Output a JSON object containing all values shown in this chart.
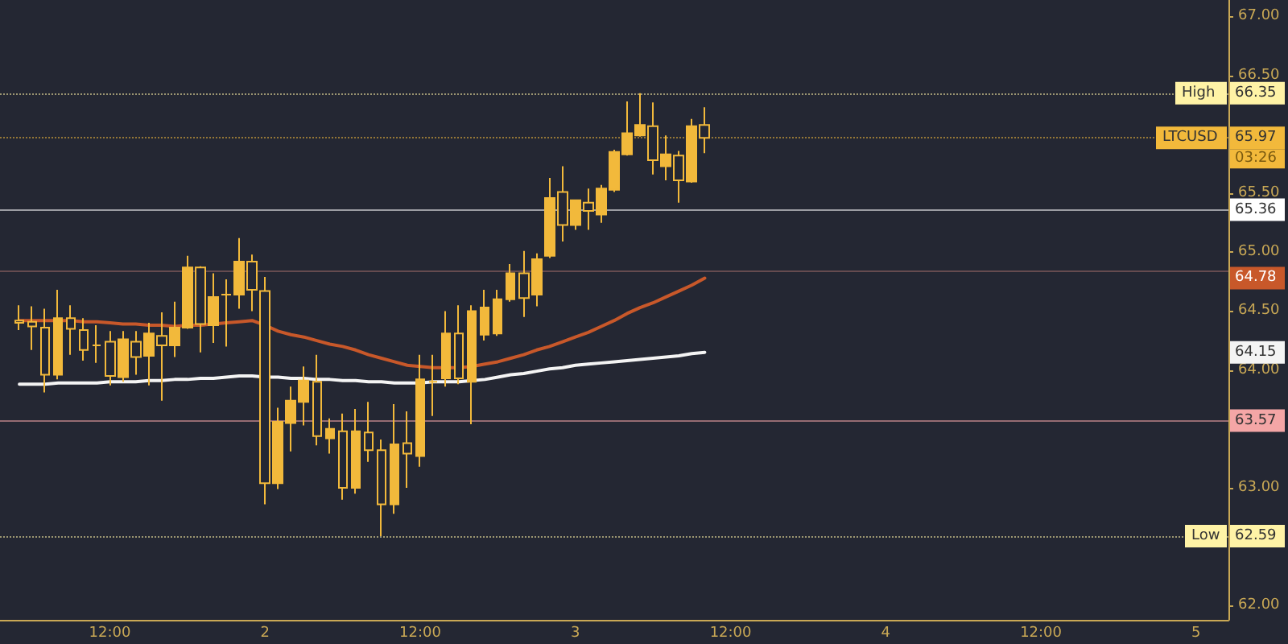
{
  "chart_data": {
    "type": "candlestick",
    "categories": [
      null,
      null,
      null,
      null,
      null,
      null,
      null,
      null,
      "12:00",
      null,
      null,
      null,
      null,
      null,
      null,
      null,
      null,
      null,
      null,
      null,
      "2",
      null,
      null,
      null,
      null,
      null,
      null,
      null,
      null,
      null,
      null,
      null,
      "12:00",
      null,
      null,
      null,
      null,
      null,
      null,
      null,
      null,
      null,
      null,
      null,
      "3",
      null,
      null,
      null,
      null,
      null,
      null,
      null,
      null,
      null,
      null,
      null,
      "12:00",
      null,
      null,
      null,
      null,
      null,
      null,
      null,
      null,
      null,
      null,
      null,
      "4",
      null,
      null,
      null,
      null,
      null,
      null,
      null,
      null,
      null,
      null,
      null,
      "12:00",
      null,
      null,
      null,
      null,
      null,
      null,
      null,
      null,
      null,
      null,
      null,
      "5",
      null,
      null
    ],
    "ohlc": [
      null,
      [
        64.42,
        64.55,
        64.34,
        64.4
      ],
      [
        64.41,
        64.54,
        64.17,
        64.37
      ],
      [
        64.36,
        64.52,
        63.81,
        63.96
      ],
      [
        63.96,
        64.68,
        63.92,
        64.44
      ],
      [
        64.44,
        64.55,
        64.13,
        64.35
      ],
      [
        64.34,
        64.44,
        64.08,
        64.17
      ],
      [
        64.21,
        64.38,
        64.06,
        64.21
      ],
      [
        64.24,
        64.33,
        63.87,
        63.95
      ],
      [
        63.94,
        64.33,
        63.9,
        64.26
      ],
      [
        64.24,
        64.33,
        63.96,
        64.11
      ],
      [
        64.12,
        64.4,
        63.87,
        64.31
      ],
      [
        64.29,
        64.49,
        63.74,
        64.21
      ],
      [
        64.21,
        64.58,
        64.11,
        64.36
      ],
      [
        64.36,
        64.97,
        64.35,
        64.87
      ],
      [
        64.87,
        64.88,
        64.15,
        64.39
      ],
      [
        64.38,
        64.82,
        64.23,
        64.62
      ],
      [
        64.64,
        64.77,
        64.2,
        64.64
      ],
      [
        64.64,
        65.12,
        64.52,
        64.92
      ],
      [
        64.92,
        64.98,
        64.5,
        64.68
      ],
      [
        64.67,
        64.79,
        62.86,
        63.04
      ],
      [
        63.04,
        63.68,
        62.99,
        63.56
      ],
      [
        63.55,
        63.86,
        63.31,
        63.74
      ],
      [
        63.73,
        64.03,
        63.53,
        63.91
      ],
      [
        63.9,
        64.13,
        63.36,
        63.44
      ],
      [
        63.42,
        63.59,
        63.29,
        63.5
      ],
      [
        63.48,
        63.63,
        62.9,
        63.0
      ],
      [
        63.0,
        63.67,
        62.95,
        63.48
      ],
      [
        63.47,
        63.73,
        63.22,
        63.32
      ],
      [
        63.32,
        63.41,
        62.59,
        62.86
      ],
      [
        62.86,
        63.71,
        62.78,
        63.37
      ],
      [
        63.38,
        63.65,
        63.0,
        63.29
      ],
      [
        63.27,
        64.13,
        63.18,
        63.92
      ],
      [
        63.9,
        64.13,
        63.61,
        63.9
      ],
      [
        63.93,
        64.5,
        63.86,
        64.31
      ],
      [
        64.31,
        64.55,
        63.88,
        63.93
      ],
      [
        63.9,
        64.55,
        63.54,
        64.5
      ],
      [
        64.3,
        64.68,
        64.25,
        64.53
      ],
      [
        64.31,
        64.68,
        64.29,
        64.6
      ],
      [
        64.6,
        64.9,
        64.58,
        64.82
      ],
      [
        64.82,
        65.01,
        64.45,
        64.61
      ],
      [
        64.64,
        64.99,
        64.54,
        64.94
      ],
      [
        64.97,
        65.63,
        64.95,
        65.46
      ],
      [
        65.51,
        65.73,
        65.09,
        65.23
      ],
      [
        65.23,
        65.44,
        65.19,
        65.44
      ],
      [
        65.42,
        65.54,
        65.19,
        65.35
      ],
      [
        65.32,
        65.57,
        65.25,
        65.54
      ],
      [
        65.53,
        65.87,
        65.51,
        65.85
      ],
      [
        65.83,
        66.28,
        65.82,
        66.01
      ],
      [
        65.99,
        66.35,
        65.98,
        66.08
      ],
      [
        66.07,
        66.27,
        65.66,
        65.78
      ],
      [
        65.73,
        65.99,
        65.61,
        65.83
      ],
      [
        65.82,
        65.86,
        65.42,
        65.61
      ],
      [
        65.6,
        66.13,
        65.59,
        66.07
      ],
      [
        66.08,
        66.23,
        65.84,
        65.97
      ],
      null,
      null,
      null,
      null,
      null,
      null,
      null,
      null,
      null,
      null,
      null,
      null,
      null,
      null,
      null,
      null,
      null,
      null,
      null,
      null,
      null,
      null,
      null,
      null,
      null,
      null,
      null,
      null,
      null,
      null,
      null,
      null,
      null,
      null,
      null,
      null,
      null,
      null,
      null,
      null
    ],
    "color": "#f2b93b",
    "series": [
      {
        "type": "line",
        "color": "#c8582a",
        "values": [
          null,
          64.42,
          64.42,
          64.42,
          64.42,
          64.42,
          64.41,
          64.41,
          64.4,
          64.39,
          64.39,
          64.38,
          64.38,
          64.37,
          64.38,
          64.38,
          64.39,
          64.4,
          64.41,
          64.42,
          64.38,
          64.33,
          64.3,
          64.28,
          64.25,
          64.22,
          64.2,
          64.17,
          64.13,
          64.1,
          64.07,
          64.04,
          64.03,
          64.02,
          64.02,
          64.02,
          64.03,
          64.05,
          64.07,
          64.1,
          64.13,
          64.17,
          64.2,
          64.24,
          64.28,
          64.32,
          64.37,
          64.42,
          64.48,
          64.53,
          64.57,
          64.62,
          64.67,
          64.72,
          64.78,
          null,
          null,
          null,
          null,
          null,
          null,
          null,
          null,
          null,
          null,
          null,
          null,
          null,
          null,
          null,
          null,
          null,
          null,
          null,
          null,
          null,
          null,
          null,
          null,
          null,
          null,
          null,
          null,
          null,
          null,
          null,
          null,
          null,
          null,
          null,
          null,
          null,
          null,
          null,
          null
        ]
      },
      {
        "type": "line",
        "color": "#f4f4f4",
        "values": [
          null,
          63.88,
          63.88,
          63.88,
          63.89,
          63.89,
          63.89,
          63.89,
          63.9,
          63.9,
          63.9,
          63.91,
          63.91,
          63.92,
          63.92,
          63.93,
          63.93,
          63.94,
          63.95,
          63.95,
          63.94,
          63.94,
          63.93,
          63.93,
          63.92,
          63.92,
          63.91,
          63.91,
          63.9,
          63.9,
          63.89,
          63.89,
          63.89,
          63.9,
          63.9,
          63.9,
          63.91,
          63.92,
          63.94,
          63.96,
          63.97,
          63.99,
          64.01,
          64.02,
          64.04,
          64.05,
          64.06,
          64.07,
          64.08,
          64.09,
          64.1,
          64.11,
          64.12,
          64.14,
          64.15,
          null,
          null,
          null,
          null,
          null,
          null,
          null,
          null,
          null,
          null,
          null,
          null,
          null,
          null,
          null,
          null,
          null,
          null,
          null,
          null,
          null,
          null,
          null,
          null,
          null,
          null,
          null,
          null,
          null,
          null,
          null,
          null,
          null,
          null,
          null,
          null,
          null,
          null,
          null,
          null
        ]
      }
    ],
    "ylim": [
      61.88,
      67.14
    ],
    "yticks": [
      {
        "value": 62,
        "label": "62.00"
      },
      {
        "value": 63,
        "label": "63.00"
      },
      {
        "value": 64,
        "label": "64.00"
      },
      {
        "value": 64.5,
        "label": "64.50"
      },
      {
        "value": 65,
        "label": "65.00"
      },
      {
        "value": 65.5,
        "label": "65.50"
      },
      {
        "value": 66.5,
        "label": "66.50"
      },
      {
        "value": 67,
        "label": "67.00"
      }
    ],
    "ref_lines": [
      {
        "axis": "y",
        "value": 66.35,
        "label": "High",
        "color": "#fff3a6",
        "line_style": "dotted"
      },
      {
        "axis": "y",
        "value": 65.97,
        "label": "LTCUSD",
        "color": "#f2b93b",
        "line_style": "dotted"
      },
      {
        "axis": "y",
        "value": 65.36,
        "color": "#ffffff",
        "line_style": "solid"
      },
      {
        "axis": "y",
        "value": 64.84,
        "color": "#9a6a66",
        "line_style": "solid"
      },
      {
        "axis": "y",
        "value": 63.57,
        "color": "#f4a6a6",
        "line_style": "solid"
      },
      {
        "axis": "y",
        "value": 62.59,
        "label": "Low",
        "color": "#fff3a6",
        "line_style": "dotted"
      }
    ],
    "annotations": [
      {
        "text": "66.35",
        "y": 66.35
      },
      {
        "text": "65.97",
        "y": 65.97
      },
      "03:26",
      {
        "text": "65.36",
        "y": 65.36
      },
      {
        "text": "64.78",
        "y": 64.78
      },
      {
        "text": "64.15",
        "y": 64.15
      },
      {
        "text": "63.57",
        "y": 63.57
      },
      {
        "text": "62.59",
        "y": 62.59
      }
    ],
    "grid": false
  }
}
